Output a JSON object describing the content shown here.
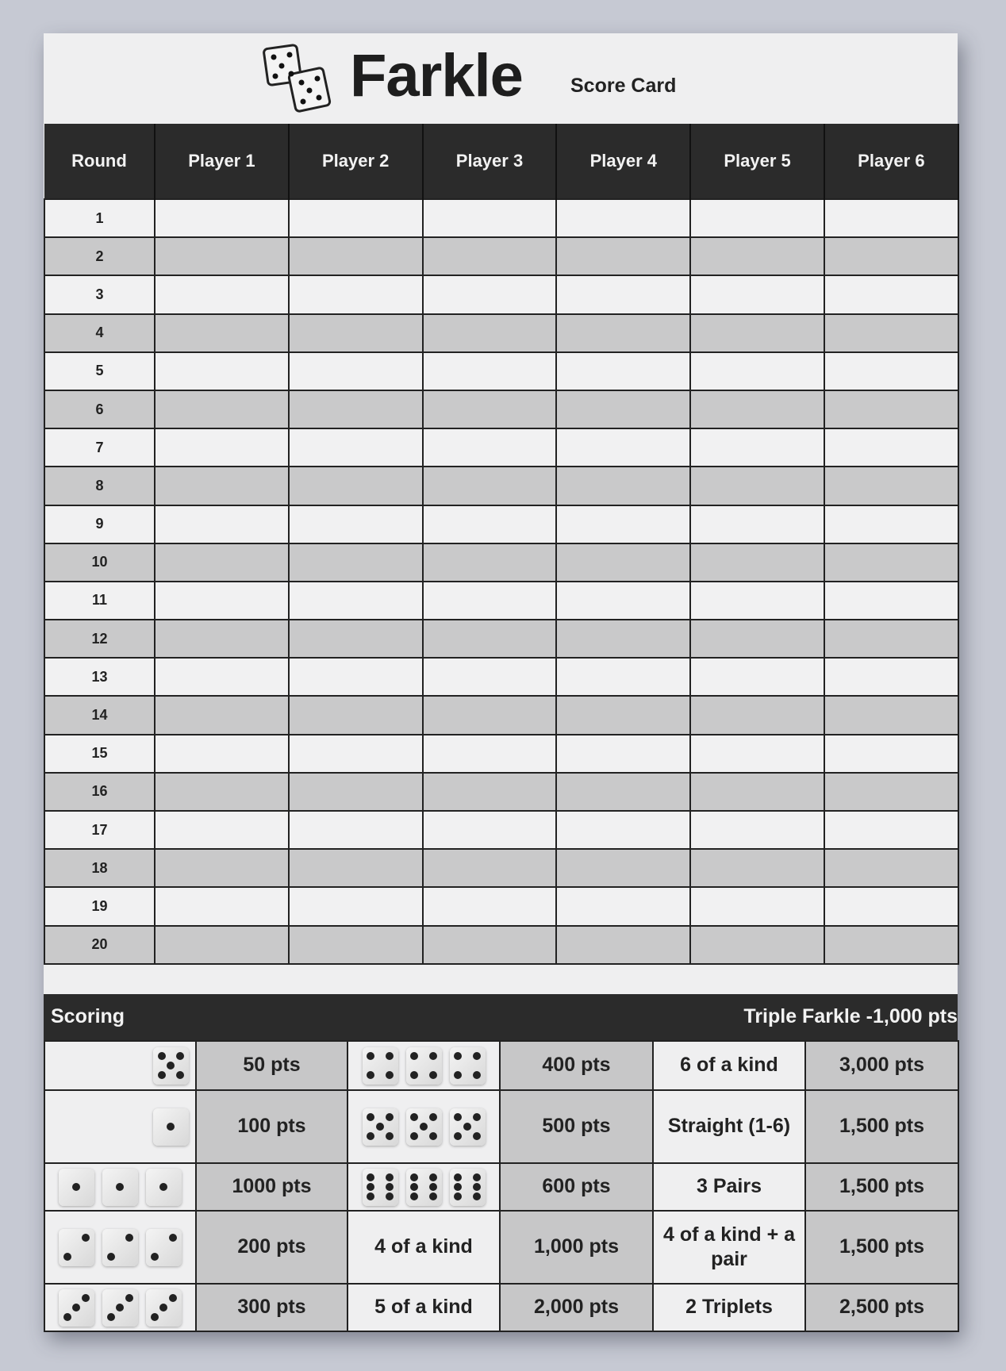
{
  "title": {
    "name": "Farkle",
    "subtitle": "Score Card"
  },
  "grid": {
    "headers": [
      "Round",
      "Player 1",
      "Player 2",
      "Player 3",
      "Player 4",
      "Player 5",
      "Player 6"
    ],
    "rounds": [
      "1",
      "2",
      "3",
      "4",
      "5",
      "6",
      "7",
      "8",
      "9",
      "10",
      "11",
      "12",
      "13",
      "14",
      "15",
      "16",
      "17",
      "18",
      "19",
      "20"
    ]
  },
  "scoring": {
    "title": "Scoring",
    "note": "Triple Farkle -1,000 pts",
    "rows": [
      {
        "dice_a": [
          5
        ],
        "pts_a": "50 pts",
        "dice_b": [
          4,
          4,
          4
        ],
        "pts_b": "400 pts",
        "combo": "6 of a kind",
        "pts_c": "3,000 pts"
      },
      {
        "dice_a": [
          1
        ],
        "pts_a": "100 pts",
        "dice_b": [
          5,
          5,
          5
        ],
        "pts_b": "500 pts",
        "combo": "Straight (1-6)",
        "pts_c": "1,500 pts"
      },
      {
        "dice_a": [
          1,
          1,
          1
        ],
        "pts_a": "1000 pts",
        "dice_b": [
          6,
          6,
          6
        ],
        "pts_b": "600 pts",
        "combo": "3 Pairs",
        "pts_c": "1,500 pts"
      },
      {
        "dice_a": [
          2,
          2,
          2
        ],
        "pts_a": "200 pts",
        "label_b": "4 of a kind",
        "pts_b": "1,000 pts",
        "combo": "4 of a kind + a pair",
        "pts_c": "1,500 pts"
      },
      {
        "dice_a": [
          3,
          3,
          3
        ],
        "pts_a": "300 pts",
        "label_b": "5 of a kind",
        "pts_b": "2,000 pts",
        "combo": "2 Triplets",
        "pts_c": "2,500 pts"
      }
    ]
  },
  "colors": {
    "header": "#2b2b2b",
    "row_light": "#f1f1f2",
    "row_dark": "#c9c9ca",
    "background": "#c6c9d3"
  }
}
